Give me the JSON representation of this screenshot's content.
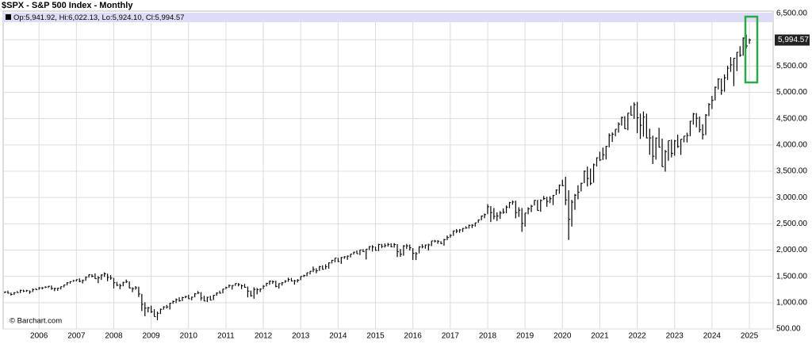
{
  "chart_data": {
    "type": "ohlc",
    "title": "$SPX - S&P 500 Index - Monthly",
    "ohlc_text": "Op:5,941.92, Hi:6,022.13, Lo:5,924.10, Cl:5,994.57",
    "watermark": "© Barchart.com",
    "color": "#000000",
    "grid": true,
    "axis_side": "right",
    "categories": [
      null,
      null,
      null,
      null,
      null,
      null,
      null,
      null,
      null,
      null,
      null,
      "2006",
      null,
      null,
      null,
      null,
      null,
      null,
      null,
      null,
      null,
      null,
      null,
      "2007",
      null,
      null,
      null,
      null,
      null,
      null,
      null,
      null,
      null,
      null,
      null,
      "2008",
      null,
      null,
      null,
      null,
      null,
      null,
      null,
      null,
      null,
      null,
      null,
      "2009",
      null,
      null,
      null,
      null,
      null,
      null,
      null,
      null,
      null,
      null,
      null,
      "2010",
      null,
      null,
      null,
      null,
      null,
      null,
      null,
      null,
      null,
      null,
      null,
      "2011",
      null,
      null,
      null,
      null,
      null,
      null,
      null,
      null,
      null,
      null,
      null,
      "2012",
      null,
      null,
      null,
      null,
      null,
      null,
      null,
      null,
      null,
      null,
      null,
      "2013",
      null,
      null,
      null,
      null,
      null,
      null,
      null,
      null,
      null,
      null,
      null,
      "2014",
      null,
      null,
      null,
      null,
      null,
      null,
      null,
      null,
      null,
      null,
      null,
      "2015",
      null,
      null,
      null,
      null,
      null,
      null,
      null,
      null,
      null,
      null,
      null,
      "2016",
      null,
      null,
      null,
      null,
      null,
      null,
      null,
      null,
      null,
      null,
      null,
      "2017",
      null,
      null,
      null,
      null,
      null,
      null,
      null,
      null,
      null,
      null,
      null,
      "2018",
      null,
      null,
      null,
      null,
      null,
      null,
      null,
      null,
      null,
      null,
      null,
      "2019",
      null,
      null,
      null,
      null,
      null,
      null,
      null,
      null,
      null,
      null,
      null,
      "2020",
      null,
      null,
      null,
      null,
      null,
      null,
      null,
      null,
      null,
      null,
      null,
      "2021",
      null,
      null,
      null,
      null,
      null,
      null,
      null,
      null,
      null,
      null,
      null,
      "2022",
      null,
      null,
      null,
      null,
      null,
      null,
      null,
      null,
      null,
      null,
      null,
      "2023",
      null,
      null,
      null,
      null,
      null,
      null,
      null,
      null,
      null,
      null,
      null,
      "2024",
      null,
      null,
      null,
      null,
      null,
      null,
      null,
      null,
      null,
      null,
      null,
      "2025"
    ],
    "high": [
      1212,
      1229,
      1191,
      1199,
      1219,
      1246,
      1245,
      1243,
      1233,
      1270,
      1276,
      1295,
      1297,
      1311,
      1318,
      1326,
      1285,
      1281,
      1306,
      1340,
      1389,
      1407,
      1431,
      1441,
      1461,
      1439,
      1498,
      1535,
      1540,
      1556,
      1503,
      1538,
      1576,
      1552,
      1523,
      1471,
      1396,
      1359,
      1397,
      1440,
      1404,
      1292,
      1314,
      1304,
      1167,
      1007,
      918,
      944,
      876,
      832,
      888,
      930,
      957,
      997,
      1040,
      1080,
      1102,
      1111,
      1130,
      1150,
      1113,
      1181,
      1220,
      1200,
      1132,
      1113,
      1130,
      1150,
      1196,
      1227,
      1263,
      1303,
      1345,
      1332,
      1366,
      1371,
      1346,
      1357,
      1307,
      1230,
      1293,
      1277,
      1270,
      1333,
      1378,
      1420,
      1422,
      1416,
      1364,
      1392,
      1427,
      1475,
      1471,
      1434,
      1448,
      1504,
      1531,
      1570,
      1598,
      1687,
      1654,
      1698,
      1709,
      1730,
      1765,
      1813,
      1849,
      1850,
      1867,
      1883,
      1897,
      1925,
      1968,
      1991,
      2005,
      2019,
      2018,
      2075,
      2093,
      2064,
      2120,
      2117,
      2126,
      2135,
      2130,
      2133,
      2113,
      2021,
      2094,
      2117,
      2105,
      2038,
      1962,
      2073,
      2111,
      2103,
      2120,
      2178,
      2193,
      2188,
      2169,
      2214,
      2278,
      2301,
      2372,
      2401,
      2398,
      2419,
      2454,
      2484,
      2491,
      2520,
      2582,
      2657,
      2695,
      2873,
      2836,
      2801,
      2718,
      2742,
      2791,
      2848,
      2917,
      2941,
      2940,
      2815,
      2800,
      2708,
      2813,
      2861,
      2950,
      2954,
      2964,
      3028,
      3013,
      3022,
      3050,
      3154,
      3248,
      3338,
      3394,
      3137,
      2955,
      3068,
      3233,
      3280,
      3514,
      3588,
      3550,
      3646,
      3760,
      3871,
      3950,
      3981,
      4219,
      4238,
      4302,
      4430,
      4537,
      4546,
      4608,
      4744,
      4809,
      4818,
      4596,
      4637,
      4594,
      4308,
      4177,
      4140,
      4325,
      4120,
      3905,
      4080,
      4101,
      4095,
      4195,
      4110,
      4170,
      4232,
      4458,
      4608,
      4607,
      4541,
      4393,
      4587,
      4793,
      4932,
      5111,
      5265,
      5264,
      5342,
      5506,
      5669,
      5651,
      5768,
      5879,
      6044,
      6100,
      6022.13
    ],
    "low": [
      1180,
      1176,
      1137,
      1146,
      1188,
      1183,
      1202,
      1205,
      1168,
      1202,
      1245,
      1245,
      1253,
      1277,
      1280,
      1245,
      1219,
      1224,
      1253,
      1290,
      1327,
      1360,
      1396,
      1403,
      1389,
      1364,
      1416,
      1476,
      1484,
      1454,
      1371,
      1433,
      1489,
      1407,
      1435,
      1271,
      1317,
      1257,
      1312,
      1373,
      1272,
      1200,
      1249,
      1107,
      840,
      741,
      815,
      805,
      735,
      667,
      784,
      866,
      888,
      870,
      978,
      992,
      1020,
      1030,
      1085,
      1071,
      1045,
      1102,
      1163,
      1040,
      1029,
      1011,
      1040,
      1049,
      1132,
      1173,
      1177,
      1257,
      1281,
      1249,
      1319,
      1311,
      1258,
      1283,
      1101,
      1115,
      1075,
      1158,
      1202,
      1258,
      1310,
      1340,
      1357,
      1292,
      1267,
      1325,
      1377,
      1397,
      1403,
      1343,
      1385,
      1427,
      1485,
      1502,
      1537,
      1581,
      1560,
      1604,
      1627,
      1633,
      1646,
      1746,
      1768,
      1770,
      1738,
      1834,
      1814,
      1860,
      1915,
      1930,
      1905,
      1965,
      1821,
      2001,
      1973,
      1988,
      1981,
      2040,
      2048,
      2067,
      2056,
      2045,
      1867,
      1872,
      1893,
      2020,
      1993,
      1812,
      1810,
      1937,
      2034,
      2026,
      1992,
      2075,
      2147,
      2120,
      2115,
      2084,
      2187,
      2234,
      2271,
      2322,
      2329,
      2344,
      2405,
      2408,
      2418,
      2447,
      2520,
      2566,
      2605,
      2683,
      2533,
      2585,
      2553,
      2594,
      2691,
      2699,
      2796,
      2864,
      2604,
      2631,
      2347,
      2444,
      2682,
      2723,
      2848,
      2751,
      2729,
      2953,
      2822,
      2892,
      2856,
      3050,
      3071,
      3215,
      2855,
      2192,
      2447,
      2766,
      2966,
      3116,
      3272,
      3210,
      3234,
      3280,
      3589,
      3694,
      3714,
      3723,
      3955,
      4057,
      4165,
      4233,
      4367,
      4306,
      4279,
      4560,
      4496,
      4223,
      4115,
      4157,
      4124,
      3811,
      3637,
      3721,
      3955,
      3585,
      3492,
      3699,
      3764,
      3794,
      3944,
      3809,
      4049,
      4048,
      4166,
      4385,
      4335,
      4238,
      4104,
      4187,
      4547,
      4682,
      4845,
      5056,
      4953,
      5012,
      5235,
      5391,
      5119,
      5403,
      5675,
      5696,
      5832,
      5924.1
    ],
    "close": [
      1204,
      1181,
      1157,
      1191,
      1191,
      1234,
      1220,
      1229,
      1207,
      1249,
      1248,
      1280,
      1281,
      1295,
      1311,
      1270,
      1270,
      1277,
      1304,
      1336,
      1378,
      1401,
      1418,
      1438,
      1407,
      1421,
      1482,
      1531,
      1503,
      1455,
      1474,
      1527,
      1549,
      1481,
      1468,
      1379,
      1331,
      1323,
      1386,
      1400,
      1280,
      1267,
      1283,
      1166,
      969,
      896,
      903,
      826,
      735,
      798,
      873,
      919,
      919,
      987,
      1021,
      1057,
      1036,
      1096,
      1115,
      1074,
      1104,
      1169,
      1187,
      1089,
      1031,
      1102,
      1049,
      1141,
      1183,
      1181,
      1258,
      1286,
      1327,
      1326,
      1364,
      1345,
      1321,
      1292,
      1219,
      1131,
      1253,
      1247,
      1258,
      1312,
      1366,
      1408,
      1398,
      1310,
      1362,
      1379,
      1407,
      1441,
      1412,
      1416,
      1426,
      1498,
      1515,
      1569,
      1598,
      1631,
      1606,
      1686,
      1633,
      1682,
      1757,
      1806,
      1848,
      1783,
      1859,
      1872,
      1884,
      1924,
      1960,
      1931,
      2003,
      1972,
      2018,
      2068,
      2059,
      1995,
      2105,
      2068,
      2086,
      2107,
      2063,
      2104,
      1972,
      1920,
      2079,
      2080,
      2044,
      1940,
      1932,
      2060,
      2065,
      2097,
      2099,
      2174,
      2171,
      2168,
      2126,
      2199,
      2239,
      2279,
      2364,
      2363,
      2384,
      2412,
      2423,
      2470,
      2472,
      2519,
      2575,
      2648,
      2674,
      2824,
      2714,
      2641,
      2648,
      2705,
      2718,
      2816,
      2902,
      2914,
      2712,
      2760,
      2507,
      2704,
      2784,
      2834,
      2946,
      2752,
      2942,
      2980,
      2926,
      2977,
      3038,
      3141,
      3231,
      3226,
      2954,
      2585,
      2912,
      3044,
      3100,
      3271,
      3500,
      3363,
      3270,
      3622,
      3756,
      3714,
      3811,
      3973,
      4181,
      4204,
      4298,
      4395,
      4523,
      4308,
      4605,
      4567,
      4766,
      4516,
      4374,
      4530,
      4132,
      4132,
      3785,
      4130,
      3955,
      3586,
      3872,
      4080,
      3840,
      4077,
      3970,
      4109,
      4169,
      4180,
      4450,
      4589,
      4508,
      4288,
      4194,
      4568,
      4770,
      4846,
      5096,
      5254,
      5036,
      5278,
      5460,
      5522,
      5648,
      5762,
      5705,
      6032,
      5882,
      5994.57
    ],
    "ylim": [
      500,
      6500
    ],
    "yticks": [
      {
        "value": 500,
        "label": "500.00"
      },
      {
        "value": 1000,
        "label": "1,000.00"
      },
      {
        "value": 1500,
        "label": "1,500.00"
      },
      {
        "value": 2000,
        "label": "2,000.00"
      },
      {
        "value": 2500,
        "label": "2,500.00"
      },
      {
        "value": 3000,
        "label": "3,000.00"
      },
      {
        "value": 3500,
        "label": "3,500.00"
      },
      {
        "value": 4000,
        "label": "4,000.00"
      },
      {
        "value": 4500,
        "label": "4,500.00"
      },
      {
        "value": 5000,
        "label": "5,000.00"
      },
      {
        "value": 5500,
        "label": "5,500.00"
      },
      {
        "value": 6000,
        "label": "6,000.00"
      },
      {
        "value": 6500,
        "label": "6,500.00"
      }
    ],
    "last_price": {
      "value": 5994.57,
      "label": "5,994.57"
    }
  }
}
